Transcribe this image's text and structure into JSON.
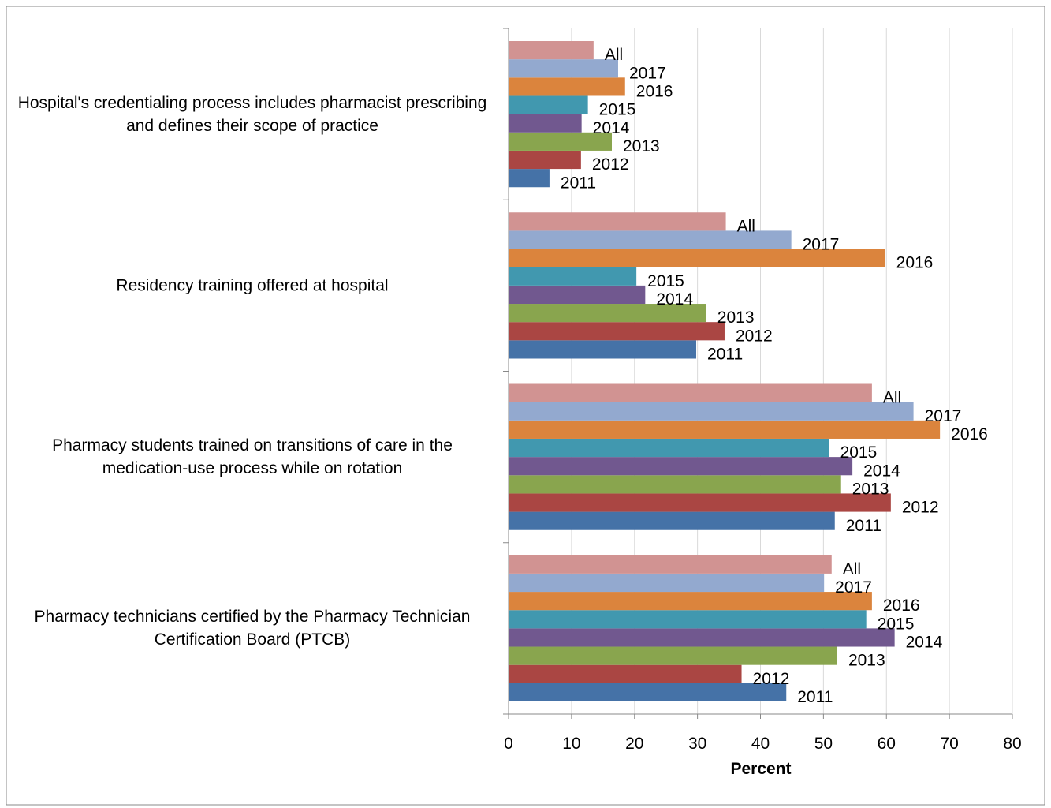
{
  "chart_data": {
    "type": "hbar",
    "categories": [
      "Hospital's credentialing process includes pharmacist prescribing and defines their scope of practice",
      "Residency training offered at hospital",
      "Pharmacy students trained on transitions of care in the medication-use process while on rotation",
      "Pharmacy technicians certified by the Pharmacy Technician Certification Board (PTCB)"
    ],
    "series": [
      {
        "name": "2011",
        "color": "#4572a7",
        "values": [
          6.5,
          29.8,
          51.8,
          44.1
        ]
      },
      {
        "name": "2012",
        "color": "#aa4643",
        "values": [
          11.5,
          34.3,
          60.7,
          37.0
        ]
      },
      {
        "name": "2013",
        "color": "#89a54e",
        "values": [
          16.4,
          31.4,
          52.8,
          52.2
        ]
      },
      {
        "name": "2014",
        "color": "#71588f",
        "values": [
          11.6,
          21.7,
          54.6,
          61.3
        ]
      },
      {
        "name": "2015",
        "color": "#4198af",
        "values": [
          12.6,
          20.3,
          50.9,
          56.8
        ]
      },
      {
        "name": "2016",
        "color": "#db843d",
        "values": [
          18.5,
          59.8,
          68.5,
          57.7
        ]
      },
      {
        "name": "2017",
        "color": "#93a9cf",
        "values": [
          17.4,
          44.9,
          64.3,
          50.1
        ]
      },
      {
        "name": "All",
        "color": "#d19392",
        "values": [
          13.5,
          34.5,
          57.7,
          51.3
        ]
      }
    ],
    "x_label": "Percent",
    "xlim": [
      0,
      80
    ],
    "xticks": [
      0,
      10,
      20,
      30,
      40,
      50,
      60,
      70,
      80
    ],
    "grid": true
  }
}
